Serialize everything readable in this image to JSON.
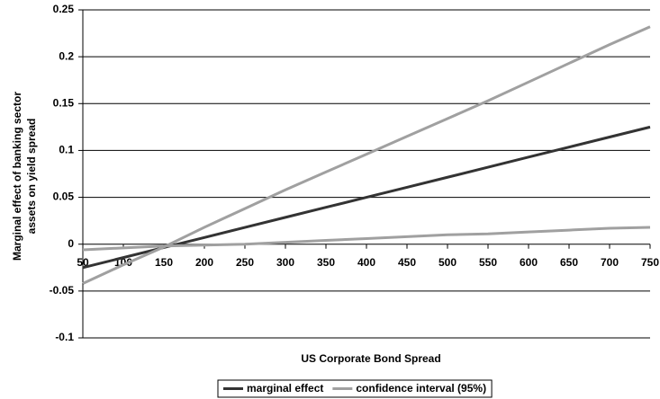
{
  "chart_data": {
    "type": "line",
    "x_label": "US Corporate Bond Spread",
    "y_label": [
      "Marginal effect of banking sector",
      "assets on yield spread"
    ],
    "x": [
      50,
      100,
      150,
      200,
      250,
      300,
      350,
      400,
      450,
      500,
      550,
      600,
      650,
      700,
      750
    ],
    "series": [
      {
        "name": "marginal effect",
        "color": "#333333",
        "values": [
          -0.025,
          -0.0143,
          -0.0036,
          0.0071,
          0.0179,
          0.0286,
          0.0393,
          0.05,
          0.0607,
          0.0714,
          0.0821,
          0.0929,
          0.1036,
          0.1143,
          0.125
        ]
      },
      {
        "name": "confidence interval (95%)",
        "color": "#a0a0a0",
        "values": [
          -0.042,
          -0.022,
          -0.003,
          0.018,
          0.038,
          0.058,
          0.077,
          0.096,
          0.115,
          0.134,
          0.153,
          0.173,
          0.193,
          0.213,
          0.232
        ]
      },
      {
        "color": "#a0a0a0",
        "values": [
          -0.006,
          -0.004,
          -0.002,
          -0.001,
          0.0,
          0.002,
          0.004,
          0.006,
          0.008,
          0.01,
          0.011,
          0.013,
          0.015,
          0.017,
          0.018
        ]
      }
    ],
    "xlim": [
      50,
      750
    ],
    "xticks": [
      50,
      100,
      150,
      200,
      250,
      300,
      350,
      400,
      450,
      500,
      550,
      600,
      650,
      700,
      750
    ],
    "ylim": [
      -0.1,
      0.25
    ],
    "yticks": [
      0.25,
      0.2,
      0.15,
      0.1,
      0.05,
      0,
      -0.05,
      -0.1
    ],
    "grid": true,
    "legend": "bottom"
  }
}
